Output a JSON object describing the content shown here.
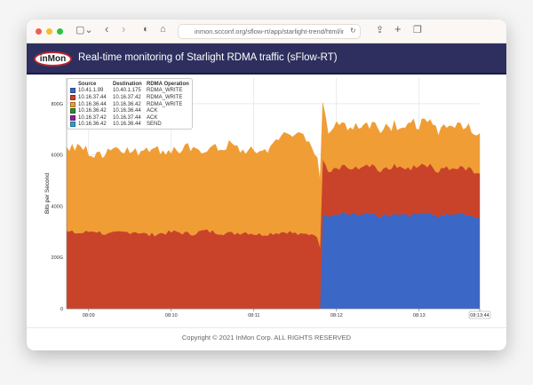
{
  "browser": {
    "url": "inmon.scconf.org/sflow-rt/app/starlight-trend/html/ind"
  },
  "header": {
    "logo": "inMon",
    "title": "Real-time monitoring of Starlight RDMA traffic (sFlow-RT)"
  },
  "legend": {
    "headers": [
      "Source",
      "Destination",
      "RDMA Operation"
    ],
    "rows": [
      {
        "src": "10.41.1.99",
        "dst": "10.40.1.175",
        "op": "RDMA_WRITE",
        "color": "#3b67c6"
      },
      {
        "src": "10.16.37.44",
        "dst": "10.16.37.42",
        "op": "RDMA_WRITE",
        "color": "#c9432a"
      },
      {
        "src": "10.16.36.44",
        "dst": "10.16.36.42",
        "op": "RDMA_WRITE",
        "color": "#f09d35"
      },
      {
        "src": "10.16.36.42",
        "dst": "10.16.36.44",
        "op": "ACK",
        "color": "#2f8a2f"
      },
      {
        "src": "10.16.37.42",
        "dst": "10.16.37.44",
        "op": "ACK",
        "color": "#8b1fa0"
      },
      {
        "src": "10.16.36.42",
        "dst": "10.16.36.44",
        "op": "SEND",
        "color": "#2d9ed1"
      }
    ]
  },
  "chart_data": {
    "type": "area",
    "stacked": true,
    "ylabel": "Bits per Second",
    "ylim": [
      0,
      900
    ],
    "yunit": "G",
    "yticks": [
      {
        "v": 0,
        "label": "0"
      },
      {
        "v": 200,
        "label": "200G"
      },
      {
        "v": 400,
        "label": "400G"
      },
      {
        "v": 600,
        "label": "600G"
      },
      {
        "v": 800,
        "label": "800G"
      }
    ],
    "xrange_seconds": [
      0,
      300
    ],
    "x_start": "08:08:44",
    "xticks": [
      {
        "t": 16,
        "label": "08:09"
      },
      {
        "t": 76,
        "label": "08:10"
      },
      {
        "t": 136,
        "label": "08:11"
      },
      {
        "t": 196,
        "label": "08:12"
      },
      {
        "t": 256,
        "label": "08:13"
      },
      {
        "t": 300,
        "label": "08:13:44"
      }
    ],
    "x_step_seconds": 10,
    "series": [
      {
        "name": "10.41.1.99 10.40.1.175 RDMA_WRITE",
        "color": "#3b67c6",
        "values": [
          0,
          0,
          0,
          0,
          0,
          0,
          0,
          0,
          0,
          0,
          0,
          0,
          0,
          0,
          0,
          0,
          0,
          0,
          0,
          365,
          372,
          368,
          375,
          360,
          370,
          366,
          378,
          362,
          369,
          371,
          358
        ]
      },
      {
        "name": "10.16.37.44 10.16.37.42 RDMA_WRITE",
        "color": "#c9432a",
        "values": [
          300,
          295,
          305,
          290,
          298,
          302,
          288,
          296,
          300,
          292,
          305,
          298,
          294,
          300,
          290,
          296,
          302,
          288,
          295,
          180,
          182,
          178,
          185,
          176,
          183,
          180,
          186,
          179,
          181,
          184,
          178
        ]
      },
      {
        "name": "10.16.36.44 10.16.36.42 RDMA_WRITE",
        "color": "#f09d35",
        "values": [
          320,
          335,
          290,
          330,
          325,
          310,
          345,
          320,
          315,
          330,
          312,
          335,
          340,
          318,
          325,
          345,
          395,
          380,
          330,
          165,
          160,
          168,
          158,
          170,
          162,
          166,
          160,
          164,
          168,
          158,
          162
        ]
      }
    ]
  },
  "footer": {
    "copyright": "Copyright © 2021 InMon Corp. ALL RIGHTS RESERVED"
  }
}
